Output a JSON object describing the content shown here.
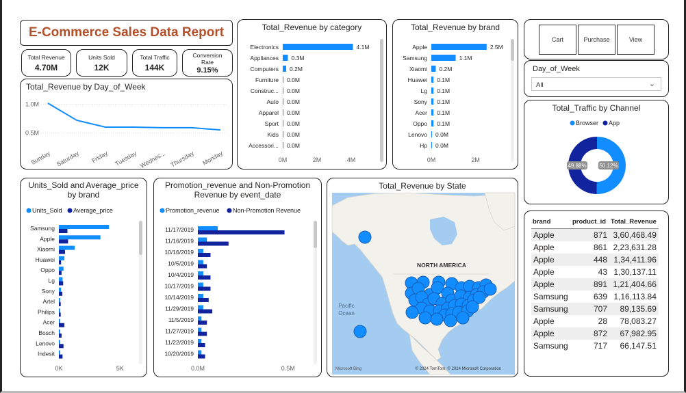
{
  "report_title": "E-Commerce Sales Data Report",
  "kpis": [
    {
      "label": "Total Revenue",
      "value": "4.70M"
    },
    {
      "label": "Units Sold",
      "value": "12K"
    },
    {
      "label": "Total Traffic",
      "value": "144K"
    },
    {
      "label": "Conversion Rate",
      "value": "9.15%"
    }
  ],
  "buttons": {
    "cart": "Cart",
    "purchase": "Purchase",
    "view": "View"
  },
  "slicer": {
    "label": "Day_of_Week",
    "value": "All"
  },
  "colors": {
    "primary": "#118dff",
    "secondary": "#12239e",
    "title": "#b1502b",
    "border": "#222222"
  },
  "map": {
    "title": "Total_Revenue by State",
    "continent_label": "NORTH AMERICA",
    "ocean_label": "Pacific Ocean",
    "provider": "Microsoft Bing",
    "copyright": "© 2024 TomTom, © 2024 Microsoft Corporation"
  },
  "table": {
    "columns": [
      "brand",
      "product_id",
      "Total_Revenue"
    ],
    "rows": [
      [
        "Apple",
        "871",
        "3,60,468.49"
      ],
      [
        "Apple",
        "861",
        "2,23,631.28"
      ],
      [
        "Apple",
        "448",
        "1,34,411.96"
      ],
      [
        "Apple",
        "43",
        "1,30,137.11"
      ],
      [
        "Apple",
        "891",
        "1,21,404.66"
      ],
      [
        "Samsung",
        "639",
        "1,16,113.84"
      ],
      [
        "Samsung",
        "707",
        "89,135.69"
      ],
      [
        "Apple",
        "28",
        "78,083.27"
      ],
      [
        "Apple",
        "872",
        "67,982.95"
      ],
      [
        "Samsung",
        "717",
        "66,147.51"
      ]
    ]
  },
  "chart_data": [
    {
      "id": "revenue_by_day",
      "type": "line",
      "title": "Total_Revenue by Day_of_Week",
      "categories": [
        "Sunday",
        "Saturday",
        "Friday",
        "Tuesday",
        "Wednes...",
        "Thursday",
        "Monday"
      ],
      "values": [
        1.02,
        0.72,
        0.6,
        0.6,
        0.59,
        0.59,
        0.55
      ],
      "yticks": [
        "1.0M",
        "0.5M"
      ],
      "ytick_values": [
        1.0,
        0.5
      ],
      "ylim": [
        0.3,
        1.2
      ]
    },
    {
      "id": "revenue_by_category",
      "type": "bar",
      "orientation": "horizontal",
      "title": "Total_Revenue by category",
      "categories": [
        "Electronics",
        "Appliances",
        "Computers",
        "Furniture",
        "Construc...",
        "Auto",
        "Apparel",
        "Sport",
        "Kids",
        "Accessori..."
      ],
      "values": [
        4.1,
        0.3,
        0.2,
        0.0,
        0.0,
        0.0,
        0.0,
        0.0,
        0.0,
        0.0
      ],
      "labels": [
        "4.1M",
        "0.3M",
        "0.2M",
        "0.0M",
        "0.0M",
        "0.0M",
        "0.0M",
        "0.0M",
        "0.0M",
        "0.0M"
      ],
      "xticks": [
        "0M",
        "2M",
        "4M"
      ],
      "xtick_values": [
        0,
        2,
        4
      ],
      "xlim": [
        0,
        5
      ]
    },
    {
      "id": "revenue_by_brand",
      "type": "bar",
      "orientation": "horizontal",
      "title": "Total_Revenue by brand",
      "categories": [
        "Apple",
        "Samsung",
        "Xiaomi",
        "Huawei",
        "Lg",
        "Sony",
        "Acer",
        "Oppo",
        "Lenovo",
        "Hp"
      ],
      "values": [
        2.5,
        1.1,
        0.2,
        0.1,
        0.1,
        0.1,
        0.1,
        0.1,
        0.0,
        0.0
      ],
      "labels": [
        "2.5M",
        "1.1M",
        "0.2M",
        "0.1M",
        "0.1M",
        "0.1M",
        "0.1M",
        "0.1M",
        "0.0M",
        "0.0M"
      ],
      "xticks": [
        "0M",
        "2M"
      ],
      "xtick_values": [
        0,
        2
      ],
      "xlim": [
        0,
        3
      ]
    },
    {
      "id": "traffic_by_channel",
      "type": "pie",
      "title": "Total_Traffic by Channel",
      "categories": [
        "Browser",
        "App"
      ],
      "values": [
        50.12,
        49.88
      ],
      "labels": [
        "50.12%",
        "49.88%"
      ],
      "legend": "top"
    },
    {
      "id": "units_price_by_brand",
      "type": "bar",
      "orientation": "horizontal",
      "title": "Units_Sold and Average_price by brand",
      "categories": [
        "Samsung",
        "Apple",
        "Xiaomi",
        "Huawei",
        "Oppo",
        "Lg",
        "Sony",
        "Artel",
        "Philips",
        "Acer",
        "Bosch",
        "Lenovo",
        "Indesit"
      ],
      "series": [
        {
          "name": "Units_Sold",
          "values": [
            4100,
            3400,
            1300,
            450,
            380,
            300,
            180,
            120,
            100,
            80,
            70,
            60,
            50
          ]
        },
        {
          "name": "Average_price",
          "values": [
            700,
            750,
            500,
            180,
            220,
            350,
            280,
            150,
            150,
            450,
            220,
            380,
            300
          ]
        }
      ],
      "xticks": [
        "0K",
        "5K"
      ],
      "xtick_values": [
        0,
        5000
      ],
      "xlim": [
        0,
        5600
      ]
    },
    {
      "id": "promo_by_date",
      "type": "bar",
      "orientation": "horizontal",
      "title": "Promotion_revenue and Non-Promotion Revenue by event_date",
      "categories": [
        "11/17/2019",
        "11/16/2019",
        "10/16/2019",
        "10/5/2019",
        "10/4/2019",
        "10/17/2019",
        "10/14/2019",
        "11/29/2019",
        "11/5/2019",
        "11/27/2019",
        "11/22/2019",
        "10/20/2019"
      ],
      "series": [
        {
          "name": "Promotion_revenue",
          "values": [
            0.11,
            0.05,
            0.03,
            0.03,
            0.03,
            0.03,
            0.03,
            0.03,
            0.02,
            0.02,
            0.02,
            0.02
          ]
        },
        {
          "name": "Non-Promotion Revenue",
          "values": [
            0.48,
            0.17,
            0.07,
            0.05,
            0.07,
            0.07,
            0.06,
            0.08,
            0.05,
            0.05,
            0.04,
            0.04
          ]
        }
      ],
      "xticks": [
        "0.0M",
        "0.5M"
      ],
      "xtick_values": [
        0,
        0.5
      ],
      "xlim": [
        0,
        0.55
      ]
    }
  ]
}
